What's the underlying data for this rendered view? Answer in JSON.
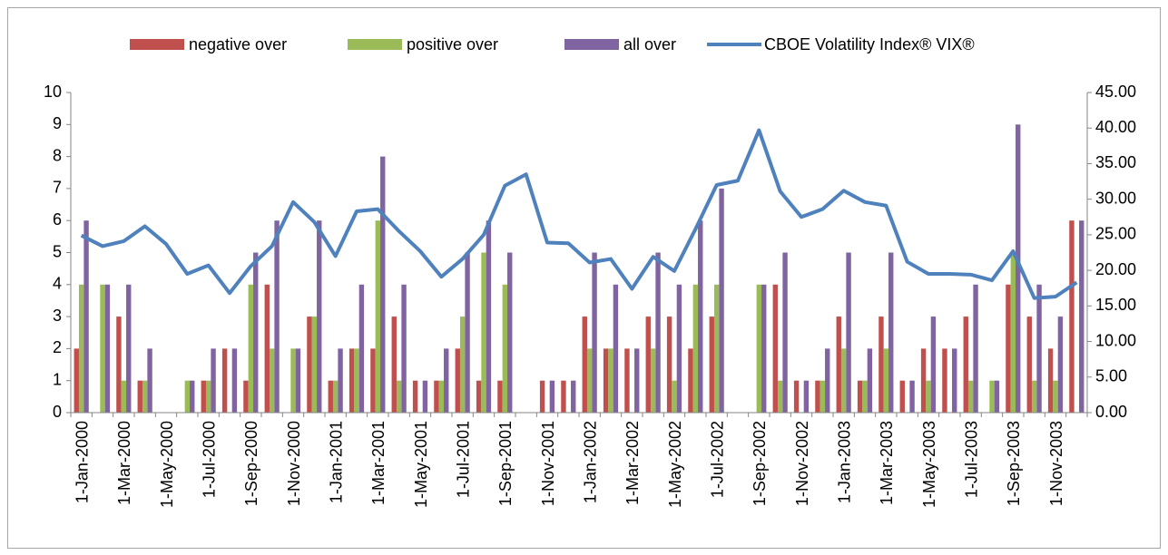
{
  "chart_data": {
    "type": "bar",
    "categories": [
      "1-Jan-2000",
      null,
      "1-Mar-2000",
      null,
      "1-May-2000",
      null,
      "1-Jul-2000",
      null,
      "1-Sep-2000",
      null,
      "1-Nov-2000",
      null,
      "1-Jan-2001",
      null,
      "1-Mar-2001",
      null,
      "1-May-2001",
      null,
      "1-Jul-2001",
      null,
      "1-Sep-2001",
      null,
      "1-Nov-2001",
      null,
      "1-Jan-2002",
      null,
      "1-Mar-2002",
      null,
      "1-May-2002",
      null,
      "1-Jul-2002",
      null,
      "1-Sep-2002",
      null,
      "1-Nov-2002",
      null,
      "1-Jan-2003",
      null,
      "1-Mar-2003",
      null,
      "1-May-2003",
      null,
      "1-Jul-2003",
      null,
      "1-Sep-2003",
      null,
      "1-Nov-2003",
      null
    ],
    "series": [
      {
        "name": "negative over",
        "color": "#c0504d",
        "values": [
          2,
          0,
          3,
          1,
          0,
          0,
          1,
          2,
          1,
          4,
          0,
          3,
          1,
          2,
          2,
          3,
          1,
          1,
          2,
          1,
          1,
          0,
          1,
          1,
          3,
          2,
          2,
          3,
          3,
          2,
          3,
          0,
          0,
          4,
          1,
          1,
          3,
          1,
          3,
          1,
          2,
          2,
          3,
          0,
          4,
          3,
          2,
          6
        ]
      },
      {
        "name": "positive over",
        "color": "#9bbb59",
        "values": [
          4,
          4,
          1,
          1,
          0,
          1,
          1,
          0,
          4,
          2,
          2,
          3,
          1,
          2,
          6,
          1,
          0,
          1,
          3,
          5,
          4,
          0,
          0,
          0,
          2,
          2,
          0,
          2,
          1,
          4,
          4,
          0,
          4,
          1,
          0,
          1,
          2,
          1,
          2,
          0,
          1,
          0,
          1,
          1,
          5,
          1,
          1,
          0
        ]
      },
      {
        "name": "all over",
        "color": "#8064a2",
        "values": [
          6,
          4,
          4,
          2,
          0,
          1,
          2,
          2,
          5,
          6,
          2,
          6,
          2,
          4,
          8,
          4,
          1,
          2,
          5,
          6,
          5,
          0,
          1,
          1,
          5,
          4,
          2,
          5,
          4,
          6,
          7,
          0,
          4,
          5,
          1,
          2,
          5,
          2,
          5,
          1,
          3,
          2,
          4,
          1,
          9,
          4,
          3,
          6
        ]
      },
      {
        "name": "CBOE Volatility Index® VIX®",
        "color": "#4f81bd",
        "type": "line",
        "axis": "y2",
        "values": [
          24.9,
          23.4,
          24.1,
          26.2,
          23.7,
          19.5,
          20.7,
          16.8,
          20.6,
          23.4,
          29.6,
          26.8,
          22.0,
          28.3,
          28.6,
          25.5,
          22.7,
          19.1,
          21.6,
          25.0,
          31.9,
          33.5,
          23.9,
          23.8,
          21.1,
          21.6,
          17.4,
          21.9,
          19.9,
          25.8,
          32.0,
          32.6,
          39.7,
          31.1,
          27.5,
          28.6,
          31.2,
          29.6,
          29.1,
          21.2,
          19.5,
          19.5,
          19.4,
          18.6,
          22.7,
          16.1,
          16.3,
          18.3
        ]
      }
    ],
    "ylim": [
      0,
      10
    ],
    "yticks": [
      0,
      1,
      2,
      3,
      4,
      5,
      6,
      7,
      8,
      9,
      10
    ],
    "y2lim": [
      0,
      45
    ],
    "y2ticks": [
      {
        "value": 0,
        "label": "0.00"
      },
      {
        "value": 5,
        "label": "5.00"
      },
      {
        "value": 10,
        "label": "10.00"
      },
      {
        "value": 15,
        "label": "15.00"
      },
      {
        "value": 20,
        "label": "20.00"
      },
      {
        "value": 25,
        "label": "25.00"
      },
      {
        "value": 30,
        "label": "30.00"
      },
      {
        "value": 35,
        "label": "35.00"
      },
      {
        "value": 40,
        "label": "40.00"
      },
      {
        "value": 45,
        "label": "45.00"
      }
    ],
    "legend": "top"
  }
}
